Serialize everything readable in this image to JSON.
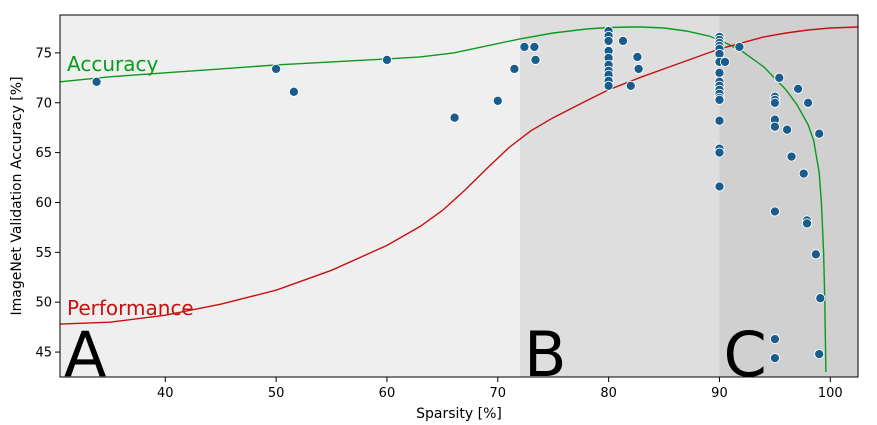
{
  "chart_data": {
    "type": "scatter",
    "xlabel": "Sparsity [%]",
    "ylabel": "ImageNet Validation Accuracy [%]",
    "xlim": [
      30.5,
      102.5
    ],
    "ylim": [
      42.5,
      78.8
    ],
    "x_ticks": [
      40,
      50,
      60,
      70,
      80,
      90,
      100
    ],
    "y_ticks": [
      45,
      50,
      55,
      60,
      65,
      70,
      75
    ],
    "grid": false,
    "regions": [
      {
        "label": "A",
        "x_start": 30.5,
        "x_end": 72,
        "color": "#efefef"
      },
      {
        "label": "B",
        "x_start": 72,
        "x_end": 90,
        "color": "#dedede"
      },
      {
        "label": "C",
        "x_start": 90,
        "x_end": 102.5,
        "color": "#d0d0d0"
      }
    ],
    "curves": [
      {
        "name": "Accuracy",
        "color": "#0a9a1e",
        "points": [
          [
            30.5,
            72.1
          ],
          [
            35,
            72.6
          ],
          [
            40,
            73.0
          ],
          [
            45,
            73.4
          ],
          [
            50,
            73.8
          ],
          [
            55,
            74.1
          ],
          [
            60,
            74.4
          ],
          [
            63,
            74.6
          ],
          [
            66,
            75.0
          ],
          [
            69,
            75.7
          ],
          [
            72,
            76.4
          ],
          [
            75,
            77.0
          ],
          [
            78,
            77.4
          ],
          [
            80,
            77.55
          ],
          [
            82,
            77.6
          ],
          [
            83,
            77.6
          ],
          [
            85,
            77.5
          ],
          [
            87,
            77.2
          ],
          [
            89,
            76.7
          ],
          [
            90,
            76.3
          ],
          [
            92,
            75.2
          ],
          [
            94,
            73.6
          ],
          [
            96,
            71.3
          ],
          [
            97,
            69.8
          ],
          [
            98,
            67.8
          ],
          [
            98.5,
            66.2
          ],
          [
            99,
            63.0
          ],
          [
            99.2,
            60.0
          ],
          [
            99.4,
            55.0
          ],
          [
            99.5,
            50.0
          ],
          [
            99.6,
            43.0
          ]
        ]
      },
      {
        "name": "Performance",
        "color": "#c81010",
        "points": [
          [
            30.5,
            47.8
          ],
          [
            35,
            48.0
          ],
          [
            40,
            48.7
          ],
          [
            45,
            49.8
          ],
          [
            50,
            51.2
          ],
          [
            55,
            53.2
          ],
          [
            60,
            55.7
          ],
          [
            63,
            57.6
          ],
          [
            65,
            59.2
          ],
          [
            67,
            61.2
          ],
          [
            69,
            63.4
          ],
          [
            71,
            65.5
          ],
          [
            73,
            67.2
          ],
          [
            75,
            68.5
          ],
          [
            78,
            70.2
          ],
          [
            80,
            71.3
          ],
          [
            83,
            72.6
          ],
          [
            86,
            73.8
          ],
          [
            88,
            74.6
          ],
          [
            90,
            75.4
          ],
          [
            92,
            76.0
          ],
          [
            94,
            76.6
          ],
          [
            96,
            77.0
          ],
          [
            98,
            77.3
          ],
          [
            100,
            77.5
          ],
          [
            102.5,
            77.6
          ]
        ]
      }
    ],
    "points": [
      [
        33.8,
        72.1
      ],
      [
        50,
        73.4
      ],
      [
        51.6,
        71.1
      ],
      [
        60,
        74.3
      ],
      [
        66.1,
        68.5
      ],
      [
        70,
        70.2
      ],
      [
        71.5,
        73.4
      ],
      [
        72.4,
        75.6
      ],
      [
        73.3,
        75.6
      ],
      [
        73.4,
        74.3
      ],
      [
        80,
        77.2
      ],
      [
        80,
        76.7
      ],
      [
        80,
        76.2
      ],
      [
        80,
        75.2
      ],
      [
        80,
        74.5
      ],
      [
        80,
        73.8
      ],
      [
        80,
        73.2
      ],
      [
        80,
        72.8
      ],
      [
        80,
        72.2
      ],
      [
        80,
        71.7
      ],
      [
        81.3,
        76.2
      ],
      [
        82,
        71.7
      ],
      [
        82.6,
        74.6
      ],
      [
        82.7,
        73.4
      ],
      [
        90,
        76.6
      ],
      [
        90,
        76.3
      ],
      [
        90,
        76.0
      ],
      [
        90,
        75.7
      ],
      [
        90,
        75.4
      ],
      [
        90,
        74.9
      ],
      [
        90,
        74.1
      ],
      [
        90,
        73.0
      ],
      [
        90,
        72.1
      ],
      [
        90,
        71.7
      ],
      [
        90,
        71.3
      ],
      [
        90,
        70.9
      ],
      [
        90,
        70.5
      ],
      [
        90,
        70.3
      ],
      [
        90,
        68.2
      ],
      [
        90,
        65.4
      ],
      [
        90,
        65.0
      ],
      [
        90,
        61.6
      ],
      [
        90.5,
        74.1
      ],
      [
        91.8,
        75.6
      ],
      [
        95,
        70.6
      ],
      [
        95,
        70.3
      ],
      [
        95,
        70.0
      ],
      [
        95,
        68.3
      ],
      [
        95,
        67.6
      ],
      [
        95,
        59.1
      ],
      [
        95,
        46.3
      ],
      [
        95,
        44.4
      ],
      [
        95.4,
        72.5
      ],
      [
        96.1,
        67.3
      ],
      [
        96.5,
        64.6
      ],
      [
        97.1,
        71.4
      ],
      [
        97.6,
        62.9
      ],
      [
        97.9,
        58.2
      ],
      [
        97.9,
        57.9
      ],
      [
        98,
        70.0
      ],
      [
        98.7,
        54.8
      ],
      [
        99,
        66.9
      ],
      [
        99.1,
        50.4
      ],
      [
        99,
        44.8
      ]
    ],
    "point_color": "#1a5c8c"
  }
}
